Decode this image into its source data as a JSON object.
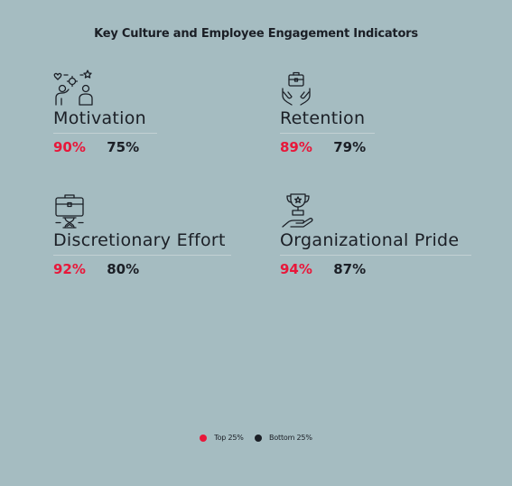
{
  "chart_data": {
    "type": "table",
    "title": "Key Culture and Employee Engagement Indicators",
    "categories": [
      "Motivation",
      "Retention",
      "Discretionary Effort",
      "Organizational Pride"
    ],
    "series": [
      {
        "name": "Top 25%",
        "values": [
          90,
          89,
          92,
          94
        ],
        "color": "#e8173a"
      },
      {
        "name": "Bottom 25%",
        "values": [
          75,
          79,
          80,
          87
        ],
        "color": "#1b1f26"
      }
    ],
    "value_labels": {
      "top": [
        "90%",
        "89%",
        "92%",
        "94%"
      ],
      "bottom": [
        "75%",
        "79%",
        "80%",
        "87%"
      ]
    },
    "icons": [
      "team-motivation-icon",
      "hands-briefcase-icon",
      "briefcase-hourglass-icon",
      "trophy-hand-icon"
    ],
    "legend_position": "bottom-center"
  },
  "colors": {
    "background": "#a5bcc1",
    "accent": "#e8173a",
    "text": "#1b1f26"
  }
}
